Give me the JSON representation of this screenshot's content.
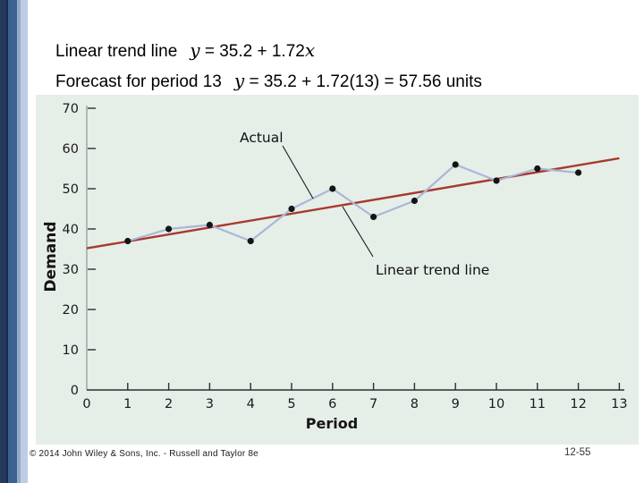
{
  "slide": {
    "title_line1": {
      "label": "Linear trend line",
      "var1": "y",
      "equation": " = 35.2 + 1.72",
      "var2": "x"
    },
    "title_line2": {
      "label": "Forecast for period 13",
      "var1": "y",
      "equation": " = 35.2 + 1.72(13) = 57.56 units"
    },
    "footer": {
      "copyright": "© 2014 John Wiley & Sons, Inc. - Russell and Taylor 8e",
      "page_number": "12-55"
    }
  },
  "chart_data": {
    "type": "line",
    "title": "",
    "xlabel": "Period",
    "ylabel": "Demand",
    "x": [
      1,
      2,
      3,
      4,
      5,
      6,
      7,
      8,
      9,
      10,
      11,
      12
    ],
    "series": [
      {
        "name": "Actual",
        "kind": "line_with_markers",
        "values": [
          37,
          40,
          41,
          37,
          45,
          50,
          43,
          47,
          56,
          52,
          55,
          54
        ],
        "line_color": "#a9b7d8",
        "marker_color": "#141414"
      },
      {
        "name": "Linear trend line",
        "kind": "trend_line",
        "equation": "y = 35.2 + 1.72x",
        "intercept": 35.2,
        "slope": 1.72,
        "x_range": [
          0,
          13
        ],
        "color": "#a63a2e"
      }
    ],
    "xticks": [
      0,
      1,
      2,
      3,
      4,
      5,
      6,
      7,
      8,
      9,
      10,
      11,
      12,
      13
    ],
    "yticks": [
      0,
      10,
      20,
      30,
      40,
      50,
      60,
      70
    ],
    "xlim": [
      0,
      13
    ],
    "ylim": [
      0,
      70
    ],
    "grid": false,
    "legend": "none",
    "plot_bg": "#e6eee8",
    "annotations": [
      {
        "text": "Actual"
      },
      {
        "text": "Linear trend line"
      }
    ]
  }
}
